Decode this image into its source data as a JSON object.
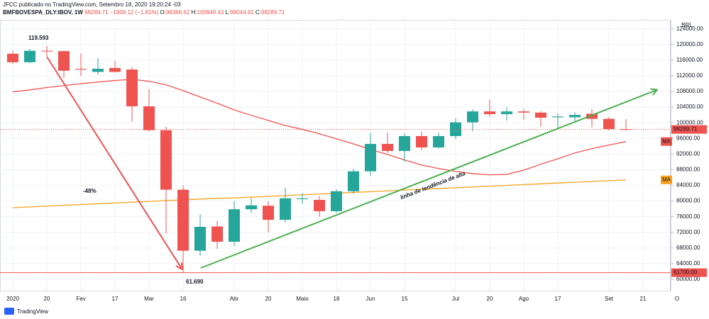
{
  "header": {
    "line1": "JFCC publicado no TradingView.com, Setembro 18, 2020 19:20:24 -03",
    "symbol": "BMFBOVESPA_DLY:IBOV, 1W",
    "change": "98289.71 −1808.12 (−1.81%)",
    "o_label": "O:",
    "o": "98366.62",
    "h_label": "H:",
    "h": "100949.43",
    "l_label": "L:",
    "l": "98044.81",
    "c_label": "C:",
    "c": "98289.71"
  },
  "footer": "TradingView",
  "chart_data": {
    "type": "candlestick",
    "currency": "BRL",
    "x": [
      0,
      1,
      2,
      3,
      4,
      5,
      6,
      7,
      8,
      9,
      10,
      11,
      12,
      13,
      14,
      15,
      16,
      17,
      18,
      19,
      20,
      21,
      22,
      23,
      24,
      25,
      26,
      27,
      28,
      29,
      30,
      31,
      32,
      33,
      34,
      35,
      36
    ],
    "open": [
      117640,
      115470,
      118400,
      118300,
      113800,
      113000,
      114000,
      113600,
      104200,
      98100,
      82900,
      67300,
      73500,
      69600,
      77900,
      78800,
      75200,
      80500,
      80300,
      77400,
      82500,
      87600,
      94600,
      92800,
      96600,
      93700,
      96600,
      100100,
      102900,
      102200,
      102900,
      102600,
      101400,
      101400,
      102300,
      101000,
      98366.62
    ],
    "high": [
      118400,
      118900,
      119593,
      118500,
      117700,
      116500,
      115800,
      114200,
      108600,
      99000,
      84000,
      76600,
      75000,
      80000,
      80800,
      79900,
      83400,
      82000,
      81300,
      83000,
      88200,
      97500,
      97500,
      97300,
      97700,
      97500,
      101200,
      103400,
      105900,
      103900,
      103500,
      103000,
      102400,
      102700,
      103500,
      101500,
      100949.43
    ],
    "low": [
      115000,
      115200,
      117000,
      111500,
      112000,
      112300,
      112800,
      100300,
      97800,
      71700,
      61690,
      66000,
      67800,
      68500,
      77000,
      72000,
      74500,
      79300,
      76000,
      77000,
      81800,
      86500,
      92300,
      90000,
      93000,
      93400,
      95800,
      97800,
      101500,
      100600,
      100800,
      99000,
      98300,
      100000,
      98800,
      98000,
      98044.81
    ],
    "close": [
      115470,
      118400,
      118300,
      113300,
      113600,
      113800,
      113000,
      104200,
      98100,
      82900,
      67300,
      73400,
      69600,
      77900,
      78900,
      75200,
      80700,
      80700,
      77400,
      82500,
      87600,
      94600,
      92800,
      96600,
      93700,
      96600,
      100100,
      102900,
      102200,
      102900,
      102600,
      101300,
      101600,
      102000,
      101000,
      98400,
      98289.71
    ],
    "up_color": "#26a69a",
    "down_color": "#ef5350",
    "series": [
      {
        "name": "MA",
        "color": "#ef5350",
        "values": [
          107900,
          108400,
          109000,
          109500,
          110000,
          110400,
          110800,
          111100,
          110600,
          109700,
          108200,
          106600,
          105000,
          103300,
          101900,
          100600,
          99300,
          98300,
          97200,
          95900,
          94600,
          93200,
          91900,
          90500,
          89200,
          88300,
          87600,
          87000,
          86700,
          86800,
          87900,
          89400,
          90800,
          92300,
          93400,
          94300,
          95200
        ]
      },
      {
        "name": "MA",
        "color": "#f7a21b",
        "values": [
          78300,
          78500,
          78700,
          78900,
          79100,
          79300,
          79500,
          79700,
          79900,
          80100,
          80300,
          80500,
          80700,
          80800,
          81000,
          81200,
          81400,
          81600,
          81800,
          82000,
          82200,
          82400,
          82600,
          82800,
          83000,
          83200,
          83400,
          83600,
          83800,
          84000,
          84200,
          84400,
          84600,
          84800,
          85000,
          85200,
          85400
        ]
      }
    ],
    "last_price": 98289.71,
    "hline": {
      "value": 61700,
      "label": "61700.00"
    },
    "annotations": [
      "119.593",
      "-48%",
      "61.690",
      "linha de tendência de alta"
    ],
    "xlim": [
      -0.75,
      38.625
    ],
    "ylim": [
      57100,
      126300
    ],
    "grid": true,
    "xticks": [
      {
        "value": 0,
        "label": "2020"
      },
      {
        "value": 2,
        "label": "20"
      },
      {
        "value": 4,
        "label": "Fev"
      },
      {
        "value": 6,
        "label": "17"
      },
      {
        "value": 8,
        "label": "Mar"
      },
      {
        "value": 10,
        "label": "16"
      },
      {
        "value": 13,
        "label": "Abr"
      },
      {
        "value": 15,
        "label": "20"
      },
      {
        "value": 17,
        "label": "Maio"
      },
      {
        "value": 19,
        "label": "18"
      },
      {
        "value": 21,
        "label": "Jun"
      },
      {
        "value": 23,
        "label": "15"
      },
      {
        "value": 26,
        "label": "Jul"
      },
      {
        "value": 28,
        "label": "20"
      },
      {
        "value": 30,
        "label": "Ago"
      },
      {
        "value": 32,
        "label": "17"
      },
      {
        "value": 35,
        "label": "Set"
      },
      {
        "value": 37,
        "label": "21"
      },
      {
        "value": 39,
        "label": "O"
      }
    ],
    "yticks": [
      {
        "value": 60000,
        "label": "60000.00"
      },
      {
        "value": 64000,
        "label": "64000.00"
      },
      {
        "value": 68000,
        "label": "68000.00"
      },
      {
        "value": 72000,
        "label": "72000.00"
      },
      {
        "value": 76000,
        "label": "76000.00"
      },
      {
        "value": 80000,
        "label": "80000.00"
      },
      {
        "value": 84000,
        "label": "84000.00"
      },
      {
        "value": 88000,
        "label": "88000.00"
      },
      {
        "value": 92000,
        "label": "92000.00"
      },
      {
        "value": 96000,
        "label": "96000.00"
      },
      {
        "value": 100000,
        "label": "100000.00"
      },
      {
        "value": 104000,
        "label": "104000.00"
      },
      {
        "value": 108000,
        "label": "108000.00"
      },
      {
        "value": 112000,
        "label": "112000.00"
      },
      {
        "value": 116000,
        "label": "116000.00"
      },
      {
        "value": 120000,
        "label": "120000.00"
      },
      {
        "value": 124000,
        "label": "124000.00"
      }
    ]
  }
}
